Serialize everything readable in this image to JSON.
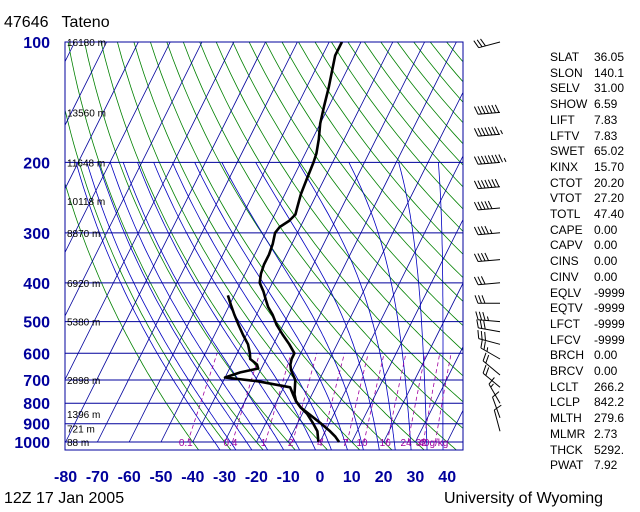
{
  "station": {
    "id": "47646",
    "name": "Tateno"
  },
  "footer": {
    "time": "12Z 17 Jan 2005",
    "source": "University of Wyoming"
  },
  "colors": {
    "isobars": "#00009c",
    "dry_adiabats": "#008000",
    "moist_adiabats": "#0000c0",
    "mixing_ratio": "#a000a0",
    "profile": "#000000"
  },
  "chart_data": {
    "type": "line",
    "title": "",
    "xlabel": "",
    "ylabel": "",
    "xlim": [
      -80,
      45
    ],
    "ylim": [
      1000,
      100
    ],
    "y_scale": "log",
    "grid": true,
    "pressure_ticks": [
      "100",
      "200",
      "300",
      "400",
      "500",
      "600",
      "700",
      "800",
      "900",
      "1000"
    ],
    "temperature_ticks": [
      "-80",
      "-70",
      "-60",
      "-50",
      "-40",
      "-30",
      "-20",
      "-10",
      "0",
      "10",
      "20",
      "30",
      "40"
    ],
    "height_labels": [
      {
        "p": 100,
        "text": "16180 m"
      },
      {
        "p": 150,
        "text": "13560 m"
      },
      {
        "p": 200,
        "text": "11648 m"
      },
      {
        "p": 250,
        "text": "10118 m"
      },
      {
        "p": 300,
        "text": "8870 m"
      },
      {
        "p": 400,
        "text": "6920 m"
      },
      {
        "p": 500,
        "text": "5380 m"
      },
      {
        "p": 700,
        "text": "2898 m"
      },
      {
        "p": 850,
        "text": "1396 m"
      },
      {
        "p": 925,
        "text": "721 m"
      },
      {
        "p": 1000,
        "text": "88 m"
      }
    ],
    "mixing_ratio_labels": [
      "0.1",
      "0.4",
      "1",
      "2",
      "4",
      "7",
      "10",
      "16",
      "24",
      "32",
      "40g/kg"
    ],
    "series": [
      {
        "name": "",
        "points": [
          [
            1000,
            6.0
          ],
          [
            970,
            4.0
          ],
          [
            940,
            1.5
          ],
          [
            900,
            -2.5
          ],
          [
            850,
            -8.0
          ],
          [
            820,
            -11.5
          ],
          [
            790,
            -14.0
          ],
          [
            760,
            -15.5
          ],
          [
            730,
            -16.5
          ],
          [
            700,
            -17.5
          ],
          [
            680,
            -19.0
          ],
          [
            660,
            -20.5
          ],
          [
            640,
            -21.5
          ],
          [
            620,
            -22.0
          ],
          [
            600,
            -22.0
          ],
          [
            570,
            -25.0
          ],
          [
            540,
            -28.5
          ],
          [
            510,
            -32.0
          ],
          [
            480,
            -35.0
          ],
          [
            460,
            -37.5
          ],
          [
            440,
            -39.5
          ],
          [
            420,
            -41.5
          ],
          [
            400,
            -44.0
          ],
          [
            380,
            -45.0
          ],
          [
            360,
            -45.5
          ],
          [
            340,
            -45.5
          ],
          [
            320,
            -46.0
          ],
          [
            300,
            -47.0
          ],
          [
            290,
            -46.5
          ],
          [
            280,
            -44.5
          ],
          [
            270,
            -43.5
          ],
          [
            260,
            -44.0
          ],
          [
            240,
            -45.0
          ],
          [
            220,
            -45.5
          ],
          [
            200,
            -46.0
          ],
          [
            190,
            -46.5
          ],
          [
            175,
            -48.0
          ],
          [
            160,
            -50.0
          ],
          [
            145,
            -51.5
          ],
          [
            130,
            -53.0
          ],
          [
            115,
            -55.0
          ],
          [
            108,
            -56.0
          ],
          [
            103,
            -56.0
          ],
          [
            100,
            -56.0
          ]
        ]
      },
      {
        "name": "",
        "points": [
          [
            1000,
            -0.5
          ],
          [
            970,
            -1.5
          ],
          [
            940,
            -2.5
          ],
          [
            900,
            -5.0
          ],
          [
            850,
            -8.5
          ],
          [
            820,
            -11.5
          ],
          [
            790,
            -14.0
          ],
          [
            760,
            -16.0
          ],
          [
            730,
            -18.0
          ],
          [
            705,
            -29.0
          ],
          [
            690,
            -40.0
          ],
          [
            670,
            -36.0
          ],
          [
            655,
            -31.0
          ],
          [
            640,
            -32.0
          ],
          [
            620,
            -35.0
          ],
          [
            600,
            -36.0
          ],
          [
            570,
            -38.0
          ],
          [
            540,
            -41.0
          ],
          [
            510,
            -44.0
          ],
          [
            480,
            -47.0
          ],
          [
            455,
            -49.5
          ],
          [
            430,
            -52.0
          ]
        ]
      }
    ]
  },
  "indices": [
    {
      "key": "SLAT",
      "value": "36.05"
    },
    {
      "key": "SLON",
      "value": "140.1"
    },
    {
      "key": "SELV",
      "value": "31.00"
    },
    {
      "key": "SHOW",
      "value": "6.59"
    },
    {
      "key": "LIFT",
      "value": "7.83"
    },
    {
      "key": "LFTV",
      "value": "7.83"
    },
    {
      "key": "SWET",
      "value": "65.02"
    },
    {
      "key": "KINX",
      "value": "15.70"
    },
    {
      "key": "CTOT",
      "value": "20.20"
    },
    {
      "key": "VTOT",
      "value": "27.20"
    },
    {
      "key": "TOTL",
      "value": "47.40"
    },
    {
      "key": "CAPE",
      "value": "0.00"
    },
    {
      "key": "CAPV",
      "value": "0.00"
    },
    {
      "key": "CINS",
      "value": "0.00"
    },
    {
      "key": "CINV",
      "value": "0.00"
    },
    {
      "key": "EQLV",
      "value": "-9999"
    },
    {
      "key": "EQTV",
      "value": "-9999"
    },
    {
      "key": "LFCT",
      "value": "-9999"
    },
    {
      "key": "LFCV",
      "value": "-9999"
    },
    {
      "key": "BRCH",
      "value": "0.00"
    },
    {
      "key": "BRCV",
      "value": "0.00"
    },
    {
      "key": "LCLT",
      "value": "266.2"
    },
    {
      "key": "LCLP",
      "value": "842.2"
    },
    {
      "key": "MLTH",
      "value": "279.6"
    },
    {
      "key": "MLMR",
      "value": "2.73"
    },
    {
      "key": "THCK",
      "value": "5292."
    },
    {
      "key": "PWAT",
      "value": "7.92"
    }
  ],
  "wind_barbs": [
    {
      "p": 100,
      "dir": 255,
      "speed": 30
    },
    {
      "p": 150,
      "dir": 265,
      "speed": 70
    },
    {
      "p": 170,
      "dir": 265,
      "speed": 75
    },
    {
      "p": 200,
      "dir": 265,
      "speed": 85
    },
    {
      "p": 230,
      "dir": 265,
      "speed": 70
    },
    {
      "p": 260,
      "dir": 265,
      "speed": 50
    },
    {
      "p": 300,
      "dir": 265,
      "speed": 45
    },
    {
      "p": 350,
      "dir": 265,
      "speed": 40
    },
    {
      "p": 400,
      "dir": 265,
      "speed": 30
    },
    {
      "p": 450,
      "dir": 270,
      "speed": 30
    },
    {
      "p": 500,
      "dir": 275,
      "speed": 35
    },
    {
      "p": 530,
      "dir": 280,
      "speed": 30
    },
    {
      "p": 570,
      "dir": 285,
      "speed": 30
    },
    {
      "p": 620,
      "dir": 300,
      "speed": 25
    },
    {
      "p": 680,
      "dir": 310,
      "speed": 20
    },
    {
      "p": 730,
      "dir": 310,
      "speed": 20
    },
    {
      "p": 800,
      "dir": 330,
      "speed": 15
    },
    {
      "p": 870,
      "dir": 340,
      "speed": 10
    },
    {
      "p": 940,
      "dir": 345,
      "speed": 10
    }
  ]
}
